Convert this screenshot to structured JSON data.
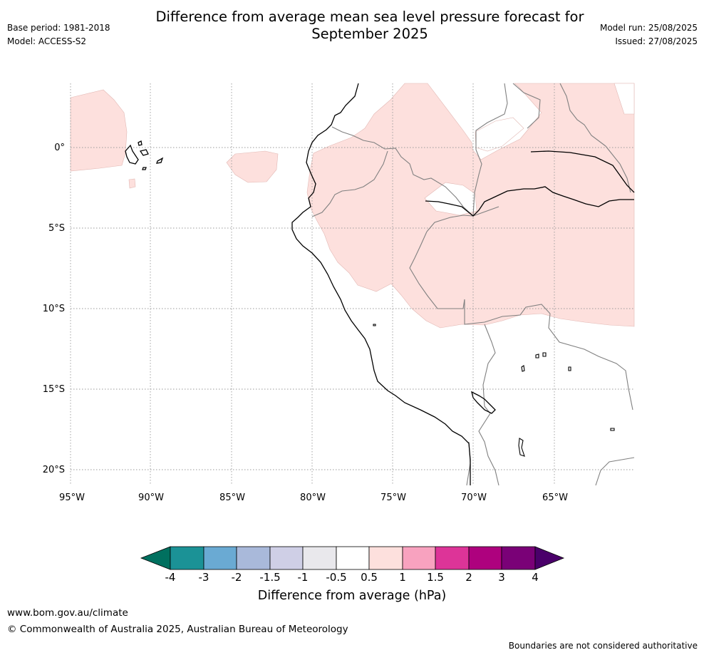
{
  "header": {
    "title_line1": "Difference from average mean sea level pressure forecast for",
    "title_line2": "September 2025",
    "base_period": "Base period: 1981-2018",
    "model": "Model: ACCESS-S2",
    "model_run": "Model run: 25/08/2025",
    "issued": "Issued: 27/08/2025"
  },
  "map": {
    "lon_labels": [
      "95°W",
      "90°W",
      "85°W",
      "80°W",
      "75°W",
      "70°W",
      "65°W"
    ],
    "lat_labels": [
      "0°",
      "5°S",
      "10°S",
      "15°S",
      "20°S"
    ],
    "anomaly_category": "0.5 to 1 hPa",
    "anomaly_color": "#fde0dd"
  },
  "colorbar": {
    "tick_labels": [
      "-4",
      "-3",
      "-2",
      "-1.5",
      "-1",
      "-0.5",
      "0.5",
      "1",
      "1.5",
      "2",
      "3",
      "4"
    ],
    "colors": [
      "#00705f",
      "#1b9296",
      "#6aaad3",
      "#a9b9da",
      "#cfcfe6",
      "#e9e8ec",
      "#ffffff",
      "#fde0dd",
      "#f8a2bf",
      "#dd3498",
      "#ae017e",
      "#7a0177",
      "#4a006a"
    ],
    "label": "Difference from average (hPa)"
  },
  "footer": {
    "website": "www.bom.gov.au/climate",
    "copyright": "© Commonwealth of Australia 2025, Australian Bureau of Meteorology",
    "disclaimer": "Boundaries are not considered authoritative"
  }
}
